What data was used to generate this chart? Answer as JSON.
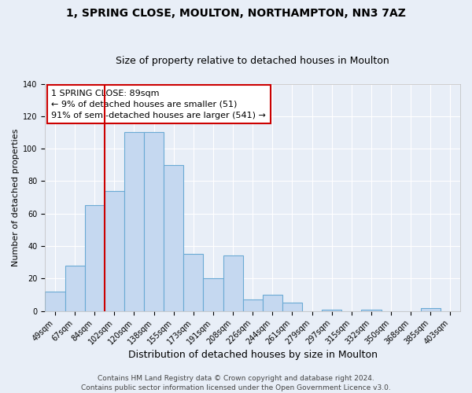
{
  "title1": "1, SPRING CLOSE, MOULTON, NORTHAMPTON, NN3 7AZ",
  "title2": "Size of property relative to detached houses in Moulton",
  "xlabel": "Distribution of detached houses by size in Moulton",
  "ylabel": "Number of detached properties",
  "bar_labels": [
    "49sqm",
    "67sqm",
    "84sqm",
    "102sqm",
    "120sqm",
    "138sqm",
    "155sqm",
    "173sqm",
    "191sqm",
    "208sqm",
    "226sqm",
    "244sqm",
    "261sqm",
    "279sqm",
    "297sqm",
    "315sqm",
    "332sqm",
    "350sqm",
    "368sqm",
    "385sqm",
    "403sqm"
  ],
  "bar_values": [
    12,
    28,
    65,
    74,
    110,
    110,
    90,
    35,
    20,
    34,
    7,
    10,
    5,
    0,
    1,
    0,
    1,
    0,
    0,
    2,
    0
  ],
  "bar_color": "#c5d8f0",
  "bar_edgecolor": "#6aaad4",
  "annotation_line1": "1 SPRING CLOSE: 89sqm",
  "annotation_line2": "← 9% of detached houses are smaller (51)",
  "annotation_line3": "91% of semi-detached houses are larger (541) →",
  "annotation_box_facecolor": "#ffffff",
  "annotation_box_edgecolor": "#cc0000",
  "vline_color": "#cc0000",
  "vline_x": 2.5,
  "ylim": [
    0,
    140
  ],
  "yticks": [
    0,
    20,
    40,
    60,
    80,
    100,
    120,
    140
  ],
  "footer1": "Contains HM Land Registry data © Crown copyright and database right 2024.",
  "footer2": "Contains public sector information licensed under the Open Government Licence v3.0.",
  "background_color": "#e8eef7",
  "grid_color": "#ffffff",
  "title1_fontsize": 10,
  "title2_fontsize": 9,
  "xlabel_fontsize": 9,
  "ylabel_fontsize": 8,
  "tick_fontsize": 7,
  "annotation_fontsize": 8,
  "footer_fontsize": 6.5
}
